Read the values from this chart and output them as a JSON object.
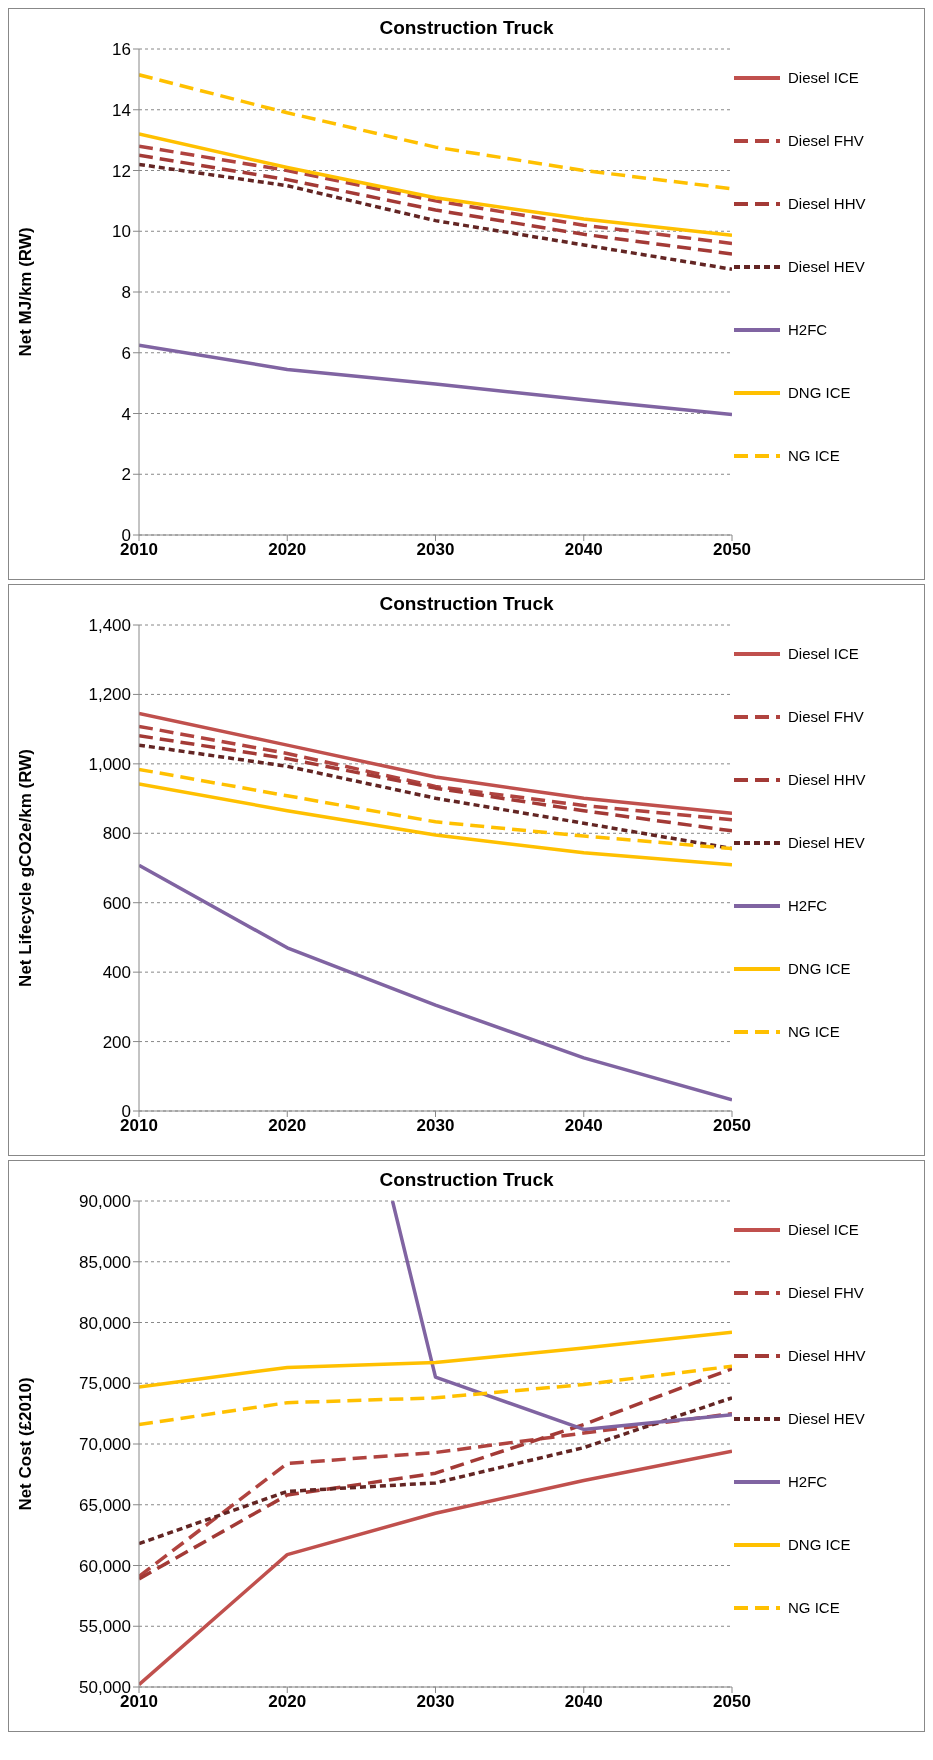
{
  "chart_data": [
    {
      "type": "line",
      "title": "Construction Truck",
      "ylabel": "Net MJ/km (RW)",
      "x": [
        2010,
        2020,
        2030,
        2040,
        2050
      ],
      "xlim": [
        2010,
        2050
      ],
      "xticks": [
        2010,
        2020,
        2030,
        2040,
        2050
      ],
      "ylim": [
        0,
        16
      ],
      "yticks": [
        0,
        2,
        4,
        6,
        8,
        10,
        12,
        14,
        16
      ],
      "grid": "y",
      "legend": "right",
      "marker": "none",
      "series": [
        {
          "name": "Diesel ICE",
          "color": "#c0504d",
          "line_style": "solid",
          "values": [
            null,
            null,
            null,
            null,
            null
          ]
        },
        {
          "name": "Diesel FHV",
          "color": "#b0433f",
          "line_style": "dashed",
          "values": [
            12.8,
            12.0,
            11.0,
            10.2,
            9.6
          ]
        },
        {
          "name": "Diesel HHV",
          "color": "#a33a36",
          "line_style": "dashed",
          "values": [
            12.5,
            11.7,
            10.7,
            9.9,
            9.25
          ]
        },
        {
          "name": "Diesel HEV",
          "color": "#632523",
          "line_style": "dotted",
          "values": [
            12.2,
            11.5,
            10.35,
            9.55,
            8.75
          ]
        },
        {
          "name": "H2FC",
          "color": "#8064a2",
          "line_style": "solid",
          "values": [
            6.25,
            5.45,
            4.97,
            4.45,
            3.97
          ]
        },
        {
          "name": "DNG ICE",
          "color": "#ffc000",
          "line_style": "solid",
          "values": [
            13.2,
            12.1,
            11.1,
            10.4,
            9.87
          ]
        },
        {
          "name": "NG ICE",
          "color": "#ffc000",
          "line_style": "dashed",
          "values": [
            15.15,
            13.9,
            12.77,
            12.0,
            11.4
          ]
        }
      ]
    },
    {
      "type": "line",
      "title": "Construction Truck",
      "ylabel": "Net Lifecycle gCO2e/km (RW)",
      "x": [
        2010,
        2020,
        2030,
        2040,
        2050
      ],
      "xlim": [
        2010,
        2050
      ],
      "xticks": [
        2010,
        2020,
        2030,
        2040,
        2050
      ],
      "ylim": [
        0,
        1400
      ],
      "yticks": [
        0,
        200,
        400,
        600,
        800,
        {
          "value": 1000,
          "label": "1,000"
        },
        {
          "value": 1200,
          "label": "1,200"
        },
        {
          "value": 1400,
          "label": "1,400"
        }
      ],
      "grid": "y",
      "legend": "right",
      "marker": "none",
      "series": [
        {
          "name": "Diesel ICE",
          "color": "#c0504d",
          "line_style": "solid",
          "values": [
            1145,
            1054,
            962,
            901,
            858
          ]
        },
        {
          "name": "Diesel FHV",
          "color": "#b0433f",
          "line_style": "dashed",
          "values": [
            1108,
            1030,
            935,
            880,
            839
          ]
        },
        {
          "name": "Diesel HHV",
          "color": "#a33a36",
          "line_style": "dashed",
          "values": [
            1081,
            1015,
            930,
            865,
            807
          ]
        },
        {
          "name": "Diesel HEV",
          "color": "#632523",
          "line_style": "dotted",
          "values": [
            1054,
            993,
            901,
            829,
            756
          ]
        },
        {
          "name": "H2FC",
          "color": "#8064a2",
          "line_style": "solid",
          "values": [
            708,
            470,
            305,
            153,
            32
          ]
        },
        {
          "name": "DNG ICE",
          "color": "#ffc000",
          "line_style": "solid",
          "values": [
            942,
            865,
            795,
            744,
            709
          ]
        },
        {
          "name": "NG ICE",
          "color": "#ffc000",
          "line_style": "dashed",
          "values": [
            984,
            908,
            833,
            792,
            756
          ]
        }
      ]
    },
    {
      "type": "line",
      "title": "Construction Truck",
      "ylabel": "Net Cost (£2010)",
      "x": [
        2010,
        2020,
        2030,
        2040,
        2050
      ],
      "xlim": [
        2010,
        2050
      ],
      "xticks": [
        2010,
        2020,
        2030,
        2040,
        2050
      ],
      "ylim": [
        50000,
        90000
      ],
      "yticks": [
        {
          "value": 50000,
          "label": "50,000"
        },
        {
          "value": 55000,
          "label": "55,000"
        },
        {
          "value": 60000,
          "label": "60,000"
        },
        {
          "value": 65000,
          "label": "65,000"
        },
        {
          "value": 70000,
          "label": "70,000"
        },
        {
          "value": 75000,
          "label": "75,000"
        },
        {
          "value": 80000,
          "label": "80,000"
        },
        {
          "value": 85000,
          "label": "85,000"
        },
        {
          "value": 90000,
          "label": "90,000"
        }
      ],
      "grid": "y",
      "legend": "right",
      "marker": "none",
      "series": [
        {
          "name": "Diesel ICE",
          "color": "#c0504d",
          "line_style": "solid",
          "values": [
            50200,
            60900,
            64300,
            67000,
            69400
          ]
        },
        {
          "name": "Diesel FHV",
          "color": "#b0433f",
          "line_style": "dashed",
          "values": [
            59100,
            68400,
            69300,
            70900,
            72500
          ]
        },
        {
          "name": "Diesel HHV",
          "color": "#a33a36",
          "line_style": "dashed",
          "values": [
            58900,
            65800,
            67600,
            71600,
            76200
          ]
        },
        {
          "name": "Diesel HEV",
          "color": "#632523",
          "line_style": "dotted",
          "values": [
            61800,
            66100,
            66800,
            69700,
            73800
          ]
        },
        {
          "name": "H2FC",
          "color": "#8064a2",
          "line_style": "solid",
          "x": [
            2027.1,
            2030,
            2040,
            2050
          ],
          "values": [
            90000,
            75500,
            71200,
            72400
          ]
        },
        {
          "name": "DNG ICE",
          "color": "#ffc000",
          "line_style": "solid",
          "values": [
            74700,
            76300,
            76700,
            77900,
            79200
          ]
        },
        {
          "name": "NG ICE",
          "color": "#ffc000",
          "line_style": "dashed",
          "values": [
            71600,
            73400,
            73800,
            74900,
            76400
          ]
        }
      ]
    }
  ]
}
